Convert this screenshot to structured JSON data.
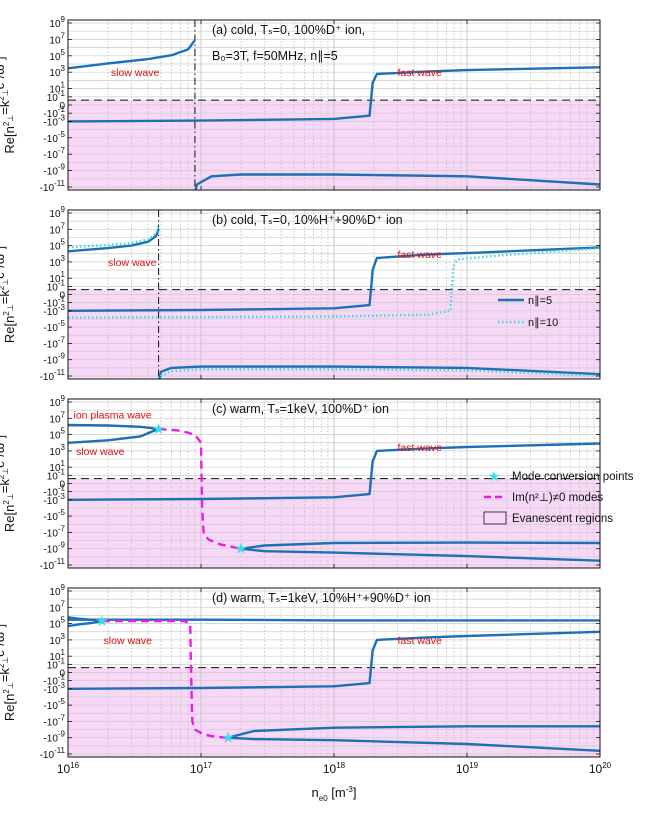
{
  "figure": {
    "xlabel": "n",
    "xlabel_sub": "e0",
    "xlabel_unit": " [m",
    "xlabel_unit_sup": "-3",
    "xlabel_close": "]",
    "ylabel_html": "Re[n²⊥=k²⊥c²/ω²]"
  },
  "colors": {
    "curve": "#1f6fb5",
    "dotted": "#3fd8e0",
    "imag": "#e81ee8",
    "evanescent": "#f7d8f7",
    "star": "#33e0e6",
    "label": "#e01010"
  },
  "chart_data": [
    {
      "panel": "a",
      "type": "line",
      "title": "(a) cold, Tₛ=0, 100%D⁺ ion,",
      "title2": "B₀=3T, f=50MHz, n∥=5",
      "xscale": "log",
      "xlim": [
        1e+16,
        1e+20
      ],
      "labels": [
        {
          "text": "slow wave",
          "x": 2.1e+16,
          "y": 1000
        },
        {
          "text": "fast wave",
          "x": 3e+18,
          "y": 1000
        }
      ],
      "vline": 9e+16,
      "series": [
        {
          "name": "slow wave",
          "style": "solid",
          "x": [
            1e+16,
            2e+16,
            4e+16,
            6e+16,
            8e+16,
            9e+16
          ],
          "y": [
            3000.0,
            12000.0,
            40000.0,
            120000.0,
            600000.0,
            8000000.0
          ]
        },
        {
          "name": "fast wave",
          "style": "solid",
          "x": [
            1e+16,
            1e+17,
            1e+18,
            1.85e+18,
            1.9e+18,
            1.95e+18,
            2.1e+18,
            5e+18,
            1e+19,
            1e+20
          ],
          "y": [
            -0.1,
            -0.08,
            -0.05,
            -0.02,
            0.5,
            50,
            600,
            1200,
            1800,
            4000
          ]
        },
        {
          "name": "",
          "style": "solid",
          "x": [
            9.05e+16,
            9.3e+16,
            1.2e+17,
            2e+17,
            1e+18,
            1e+19,
            1e+20
          ],
          "y": [
            -50000000.0,
            -5000000.0,
            -500000.0,
            -300000.0,
            -300000.0,
            -500000.0,
            -5000000.0
          ]
        }
      ]
    },
    {
      "panel": "b",
      "type": "line",
      "title": "(b) cold, Tₛ=0, 10%H⁺+90%D⁺ ion",
      "xscale": "log",
      "xlim": [
        1e+16,
        1e+20
      ],
      "labels": [
        {
          "text": "slow wave",
          "x": 2e+16,
          "y": 1000
        },
        {
          "text": "fast wave",
          "x": 3e+18,
          "y": 10000
        }
      ],
      "legend": [
        {
          "label": "n∥=5",
          "style": "solid"
        },
        {
          "label": "n∥=10",
          "style": "dotted"
        }
      ],
      "vline": 4.8e+16,
      "series": [
        {
          "name": "n∥=5",
          "style": "solid",
          "x": [
            1e+16,
            2e+16,
            3e+16,
            4e+16,
            4.6e+16,
            4.8e+16
          ],
          "y": [
            20000.0,
            50000.0,
            100000.0,
            300000.0,
            1500000.0,
            10000000.0
          ]
        },
        {
          "name": "n∥=10",
          "style": "dotted",
          "x": [
            1e+16,
            2e+16,
            3e+16,
            4e+16,
            4.6e+16,
            4.8e+16
          ],
          "y": [
            60000.0,
            120000.0,
            200000.0,
            600000.0,
            3000000.0,
            30000000.0
          ]
        },
        {
          "name": "n∥=5",
          "style": "solid",
          "x": [
            1e+16,
            1e+17,
            1e+18,
            1.85e+18,
            1.9e+18,
            1.95e+18,
            2.1e+18,
            5e+18,
            1e+19,
            1e+20
          ],
          "y": [
            -0.1,
            -0.08,
            -0.05,
            -0.02,
            0.5,
            100,
            3000,
            8000,
            12000,
            60000
          ]
        },
        {
          "name": "n∥=10",
          "style": "dotted",
          "x": [
            1e+16,
            1e+17,
            1e+18,
            5e+18,
            7.5e+18,
            7.7e+18,
            7.9e+18,
            8.5e+18,
            1.5e+19,
            1e+20
          ],
          "y": [
            -0.7,
            -0.6,
            -0.5,
            -0.3,
            -0.1,
            1,
            300,
            2000,
            5000,
            50000
          ]
        },
        {
          "name": "n∥=5",
          "style": "solid",
          "x": [
            4.85e+16,
            5e+16,
            6e+16,
            1e+17,
            1e+18,
            1e+19,
            1e+20
          ],
          "y": [
            -30000000.0,
            -3000000.0,
            -1000000.0,
            -700000.0,
            -700000.0,
            -1000000.0,
            -6000000.0
          ]
        },
        {
          "name": "n∥=10",
          "style": "dotted",
          "x": [
            4.85e+16,
            5e+16,
            6e+16,
            1e+17,
            1e+18,
            1e+19,
            1e+20
          ],
          "y": [
            -100000000.0,
            -10000000.0,
            -2500000.0,
            -1500000.0,
            -1500000.0,
            -2000000.0,
            -10000000.0
          ]
        }
      ]
    },
    {
      "panel": "c",
      "type": "line",
      "title": "(c) warm, Tₛ=1keV, 100%D⁺ ion",
      "xscale": "log",
      "xlim": [
        1e+16,
        1e+20
      ],
      "labels": [
        {
          "text": "ion plasma wave",
          "x": 1.1e+16,
          "y": 30000000.0
        },
        {
          "text": "slow wave",
          "x": 1.15e+16,
          "y": 1000
        },
        {
          "text": "fast wave",
          "x": 3e+18,
          "y": 3000
        }
      ],
      "legend": [
        {
          "label": "Mode conversion points",
          "style": "star"
        },
        {
          "label": "Im(n²⊥)≠0 modes",
          "style": "dashed"
        },
        {
          "label": "Evanescent regions",
          "style": "box"
        }
      ],
      "series": [
        {
          "name": "ion plasma wave",
          "style": "solid",
          "x": [
            1e+16,
            2e+16,
            3.5e+16,
            4.8e+16
          ],
          "y": [
            1500000.0,
            1300000.0,
            900000.0,
            500000.0
          ]
        },
        {
          "name": "slow wave",
          "style": "solid",
          "x": [
            1e+16,
            2e+16,
            3.5e+16,
            4.8e+16
          ],
          "y": [
            10000.0,
            20000.0,
            60000.0,
            500000.0
          ]
        },
        {
          "name": "Im(n²⊥)≠0 modes",
          "style": "dashed",
          "x": [
            4.8e+16,
            7e+16,
            9e+16,
            1e+17,
            1.02e+17,
            1.05e+17,
            1.15e+17,
            1.4e+17,
            2e+17
          ],
          "y": [
            500000.0,
            300000.0,
            100000.0,
            10000.0,
            -1,
            -2000,
            -8000,
            -30000.0,
            -100000.0
          ]
        },
        {
          "name": "fast wave",
          "style": "solid",
          "x": [
            1e+16,
            1e+17,
            1e+18,
            1.85e+18,
            1.9e+18,
            1.95e+18,
            2.1e+18,
            5e+18,
            1e+19,
            1e+20
          ],
          "y": [
            -0.1,
            -0.08,
            -0.05,
            -0.02,
            0.5,
            50,
            1000,
            2000,
            3000,
            8000
          ]
        },
        {
          "name": "",
          "style": "solid",
          "x": [
            2e+17,
            3e+17,
            1e+18,
            1e+19,
            1e+20
          ],
          "y": [
            -100000.0,
            -40000.0,
            -20000.0,
            -18000.0,
            -20000.0
          ]
        },
        {
          "name": "",
          "style": "solid",
          "x": [
            2e+17,
            3e+17,
            1e+18,
            1e+19,
            1e+20
          ],
          "y": [
            -100000.0,
            -200000.0,
            -300000.0,
            -800000.0,
            -3000000.0
          ]
        },
        {
          "name": "",
          "style": "solid",
          "x": [
            1e+16,
            1e+17,
            1e+18,
            1e+19,
            1e+20
          ],
          "y": [
            -1000000000.0,
            -1000000000.0,
            -1000000000.0,
            -1000000000.0,
            -1000000000.0
          ]
        }
      ],
      "points": [
        {
          "x": 4.8e+16,
          "y": 500000.0
        },
        {
          "x": 2e+17,
          "y": -100000.0
        }
      ]
    },
    {
      "panel": "d",
      "type": "line",
      "title": "(d) warm, Tₛ=1keV, 10%H⁺+90%D⁺ ion",
      "xscale": "log",
      "xlim": [
        1e+16,
        1e+20
      ],
      "labels": [
        {
          "text": "slow wave",
          "x": 1.85e+16,
          "y": 1000
        },
        {
          "text": "fast wave",
          "x": 3e+18,
          "y": 1000
        }
      ],
      "series": [
        {
          "name": "",
          "style": "solid",
          "x": [
            1e+16,
            1e+17,
            1e+18,
            1e+19,
            1e+20
          ],
          "y": [
            300000.0,
            300000.0,
            250000.0,
            250000.0,
            250000.0
          ]
        },
        {
          "name": "slow wave",
          "style": "solid",
          "x": [
            1e+16,
            1.2e+16,
            1.5e+16,
            1.8e+16
          ],
          "y": [
            50000.0,
            80000.0,
            120000.0,
            200000.0
          ]
        },
        {
          "name": "",
          "style": "solid",
          "x": [
            1e+16,
            1.2e+16,
            1.5e+16,
            1.8e+16
          ],
          "y": [
            600000.0,
            400000.0,
            300000.0,
            200000.0
          ]
        },
        {
          "name": "Im(n²⊥)≠0 modes",
          "style": "dashed",
          "x": [
            1.8e+16,
            3e+16,
            6e+16,
            7.5e+16,
            8.3e+16,
            8.4e+16,
            8.6e+16,
            9e+16,
            1.05e+17,
            1.3e+17,
            1.6e+17
          ],
          "y": [
            200000.0,
            200000.0,
            200000.0,
            200000.0,
            100000.0,
            1,
            -1000.0,
            -10000.0,
            -40000.0,
            -80000.0,
            -100000.0
          ]
        },
        {
          "name": "fast wave",
          "style": "solid",
          "x": [
            1e+16,
            1e+17,
            1e+18,
            1.85e+18,
            1.9e+18,
            1.95e+18,
            2.1e+18,
            5e+18,
            1e+19,
            1e+20
          ],
          "y": [
            -0.1,
            -0.08,
            -0.05,
            -0.02,
            0.5,
            50,
            1000,
            2000,
            3000,
            10000.0
          ]
        },
        {
          "name": "",
          "style": "solid",
          "x": [
            1.6e+17,
            2.5e+17,
            1e+18,
            1e+19,
            1e+20
          ],
          "y": [
            -100000.0,
            -15000.0,
            -6000.0,
            -4000.0,
            -4000.0
          ]
        },
        {
          "name": "",
          "style": "solid",
          "x": [
            1.6e+17,
            2.5e+17,
            1e+18,
            1e+19,
            1e+20
          ],
          "y": [
            -100000.0,
            -150000.0,
            -200000.0,
            -600000.0,
            -4000000.0
          ]
        },
        {
          "name": "",
          "style": "solid",
          "x": [
            1e+16,
            1e+17,
            1e+18,
            1e+19,
            1e+20
          ],
          "y": [
            -800000000.0,
            -800000000.0,
            -800000000.0,
            -800000000.0,
            -800000000.0
          ]
        }
      ],
      "points": [
        {
          "x": 1.8e+16,
          "y": 200000.0
        },
        {
          "x": 1.6e+17,
          "y": -100000.0
        }
      ]
    }
  ]
}
